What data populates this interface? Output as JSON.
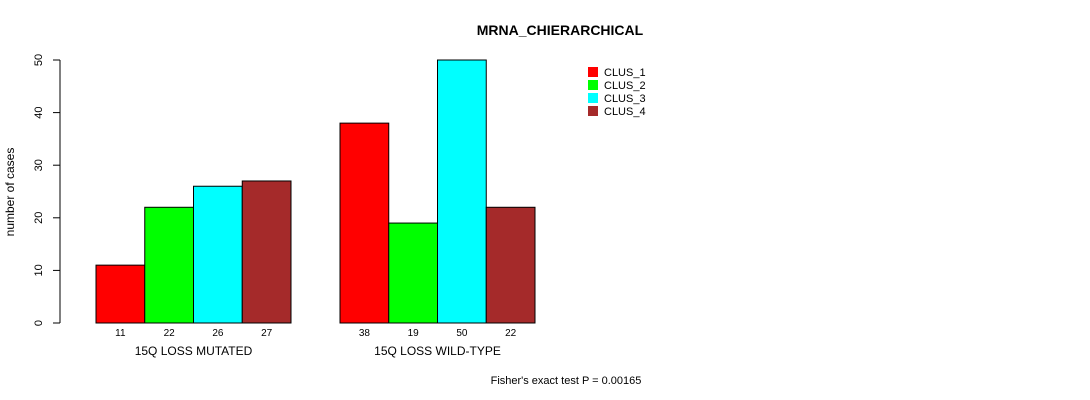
{
  "chart_data": {
    "type": "bar",
    "title": "MRNA_CHIERARCHICAL",
    "ylabel": "number of cases",
    "xlabel": "",
    "ylim": [
      0,
      50
    ],
    "yticks": [
      0,
      10,
      20,
      30,
      40,
      50
    ],
    "groups": [
      "15Q LOSS MUTATED",
      "15Q LOSS WILD-TYPE"
    ],
    "series": [
      {
        "name": "CLUS_1",
        "color": "#ff0000",
        "values": [
          11,
          38
        ]
      },
      {
        "name": "CLUS_2",
        "color": "#00ff00",
        "values": [
          22,
          19
        ]
      },
      {
        "name": "CLUS_3",
        "color": "#00ffff",
        "values": [
          26,
          50
        ]
      },
      {
        "name": "CLUS_4",
        "color": "#a52a2a",
        "values": [
          27,
          22
        ]
      }
    ],
    "bar_labels": [
      [
        "11",
        "22",
        "26",
        "27"
      ],
      [
        "38",
        "19",
        "50",
        "22"
      ]
    ],
    "legend_position": "top-right",
    "footer": "Fisher's exact test P = 0.00165"
  }
}
